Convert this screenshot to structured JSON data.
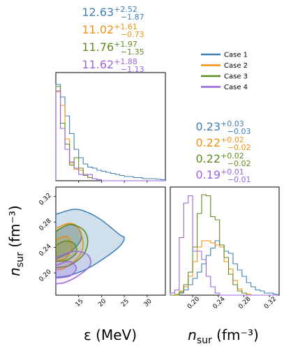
{
  "colors": {
    "case1": "#3f7fb4",
    "case2": "#f2900e",
    "case3": "#5e8a1f",
    "case4": "#9966dd"
  },
  "chart_data": [
    {
      "type": "histogram",
      "panel": "eps-marginal",
      "x_range": [
        10,
        34
      ],
      "bin_edges": [
        10,
        11,
        12,
        13,
        14,
        15,
        16,
        17,
        18,
        19,
        20,
        21,
        22,
        23,
        24,
        25,
        26,
        27,
        28,
        29,
        30,
        31,
        32,
        33,
        34
      ],
      "series": [
        {
          "name": "Case 1",
          "color": "#3f7fb4",
          "values": [
            0.92,
            0.8,
            0.62,
            0.45,
            0.3,
            0.22,
            0.16,
            0.13,
            0.12,
            0.1,
            0.09,
            0.08,
            0.07,
            0.06,
            0.05,
            0.04,
            0.04,
            0.03,
            0.03,
            0.02,
            0.02,
            0.02,
            0.015,
            0.01
          ]
        },
        {
          "name": "Case 2",
          "color": "#f2900e",
          "values": [
            0.85,
            0.72,
            0.4,
            0.17,
            0.11,
            0.1,
            0.06,
            0.03,
            0.02,
            0.01,
            0,
            0,
            0,
            0,
            0,
            0,
            0,
            0,
            0,
            0,
            0,
            0,
            0,
            0
          ]
        },
        {
          "name": "Case 3",
          "color": "#5e8a1f",
          "values": [
            0.9,
            0.55,
            0.35,
            0.15,
            0.22,
            0.12,
            0.06,
            0.03,
            0.02,
            0.01,
            0,
            0,
            0,
            0,
            0,
            0,
            0,
            0,
            0,
            0,
            0,
            0,
            0,
            0
          ]
        },
        {
          "name": "Case 4",
          "color": "#9966dd",
          "values": [
            0.86,
            0.5,
            0.3,
            0.18,
            0.12,
            0.06,
            0.05,
            0.06,
            0.02,
            0.01,
            0,
            0,
            0,
            0,
            0,
            0,
            0,
            0,
            0,
            0,
            0,
            0,
            0,
            0
          ]
        }
      ],
      "annotations": [
        {
          "median": "12.63",
          "plus": "+2.52",
          "minus": "−1.87",
          "color": "#3f7fb4"
        },
        {
          "median": "11.02",
          "plus": "+1.61",
          "minus": "−0.73",
          "color": "#f2900e"
        },
        {
          "median": "11.76",
          "plus": "+1.97",
          "minus": "−1.35",
          "color": "#5e8a1f"
        },
        {
          "median": "11.62",
          "plus": "+1.88",
          "minus": "−1.13",
          "color": "#9966dd"
        }
      ]
    },
    {
      "type": "contour",
      "panel": "joint",
      "xlim": [
        10,
        34
      ],
      "ylim": [
        0.165,
        0.335
      ],
      "x_ticks": [
        15,
        20,
        25,
        30
      ],
      "y_ticks": [
        0.2,
        0.24,
        0.28,
        0.32
      ],
      "xlabel": "ε (MeV)",
      "ylabel": "n_sur (fm⁻³)",
      "series": [
        {
          "name": "Case 1",
          "color": "#3f7fb4",
          "filled": true,
          "outer": [
            [
              10,
              0.292
            ],
            [
              14,
              0.3
            ],
            [
              17,
              0.295
            ],
            [
              20,
              0.283
            ],
            [
              24,
              0.26
            ],
            [
              25,
              0.255
            ],
            [
              24,
              0.242
            ],
            [
              21,
              0.225
            ],
            [
              17,
              0.207
            ],
            [
              13,
              0.196
            ],
            [
              10,
              0.193
            ]
          ],
          "inner": [
            [
              10,
              0.266
            ],
            [
              13,
              0.276
            ],
            [
              15,
              0.27
            ],
            [
              15.5,
              0.252
            ],
            [
              13,
              0.232
            ],
            [
              10,
              0.222
            ]
          ]
        },
        {
          "name": "Case 2",
          "color": "#f2900e",
          "filled": false,
          "outer": [
            [
              10,
              0.27
            ],
            [
              13,
              0.278
            ],
            [
              15,
              0.27
            ],
            [
              16,
              0.245
            ],
            [
              15,
              0.225
            ],
            [
              12,
              0.208
            ],
            [
              10,
              0.205
            ]
          ],
          "inner": [
            [
              10,
              0.252
            ],
            [
              12.5,
              0.257
            ],
            [
              13.5,
              0.24
            ],
            [
              12,
              0.222
            ],
            [
              10,
              0.22
            ]
          ]
        },
        {
          "name": "Case 3",
          "color": "#5e8a1f",
          "filled": false,
          "outer": [
            [
              10,
              0.265
            ],
            [
              13,
              0.276
            ],
            [
              16,
              0.268
            ],
            [
              17,
              0.25
            ],
            [
              16,
              0.228
            ],
            [
              13,
              0.212
            ],
            [
              10,
              0.208
            ]
          ],
          "inner": [
            [
              10,
              0.243
            ],
            [
              12,
              0.25
            ],
            [
              14,
              0.246
            ],
            [
              14.5,
              0.232
            ],
            [
              12.5,
              0.22
            ],
            [
              10,
              0.218
            ]
          ]
        },
        {
          "name": "Case 4",
          "color": "#9966dd",
          "filled": false,
          "outer": [
            [
              10,
              0.224
            ],
            [
              14,
              0.234
            ],
            [
              17,
              0.228
            ],
            [
              17.5,
              0.212
            ],
            [
              15,
              0.196
            ],
            [
              12,
              0.185
            ],
            [
              10,
              0.183
            ]
          ],
          "inner": [
            [
              10,
              0.212
            ],
            [
              13,
              0.218
            ],
            [
              14.5,
              0.207
            ],
            [
              13,
              0.195
            ],
            [
              10,
              0.192
            ]
          ]
        }
      ]
    },
    {
      "type": "histogram",
      "panel": "nsur-marginal",
      "x_range": [
        0.165,
        0.335
      ],
      "x_ticks": [
        0.2,
        0.24,
        0.28,
        0.32
      ],
      "xlabel": "n_sur (fm⁻³)",
      "bin_edges": [
        0.165,
        0.172,
        0.179,
        0.186,
        0.193,
        0.2,
        0.207,
        0.214,
        0.221,
        0.228,
        0.235,
        0.242,
        0.249,
        0.256,
        0.263,
        0.27,
        0.277,
        0.284,
        0.291,
        0.298,
        0.305,
        0.312,
        0.319,
        0.326,
        0.333
      ],
      "series": [
        {
          "name": "Case 1",
          "color": "#3f7fb4",
          "values": [
            0,
            0,
            0.02,
            0.05,
            0.1,
            0.16,
            0.22,
            0.3,
            0.38,
            0.45,
            0.52,
            0.48,
            0.42,
            0.4,
            0.3,
            0.24,
            0.18,
            0.12,
            0.08,
            0.05,
            0.04,
            0.02,
            0.02,
            0.01
          ]
        },
        {
          "name": "Case 2",
          "color": "#f2900e",
          "values": [
            0,
            0.01,
            0.04,
            0.08,
            0.18,
            0.32,
            0.46,
            0.52,
            0.52,
            0.5,
            0.48,
            0.46,
            0.32,
            0.25,
            0.14,
            0.06,
            0.02,
            0.01,
            0,
            0,
            0,
            0,
            0,
            0
          ]
        },
        {
          "name": "Case 3",
          "color": "#5e8a1f",
          "values": [
            0,
            0,
            0.03,
            0.1,
            0.22,
            0.46,
            0.78,
            0.96,
            0.95,
            0.75,
            0.72,
            0.48,
            0.36,
            0.2,
            0.1,
            0.04,
            0.02,
            0,
            0,
            0,
            0,
            0,
            0,
            0
          ]
        },
        {
          "name": "Case 4",
          "color": "#9966dd",
          "values": [
            0.02,
            0.05,
            0.55,
            0.88,
            0.95,
            0.42,
            0.42,
            0.34,
            0.18,
            0.08,
            0.02,
            0,
            0,
            0,
            0,
            0,
            0,
            0,
            0,
            0,
            0,
            0,
            0,
            0
          ]
        }
      ],
      "annotations": [
        {
          "median": "0.23",
          "plus": "+0.03",
          "minus": "−0.03",
          "color": "#3f7fb4"
        },
        {
          "median": "0.22",
          "plus": "+0.02",
          "minus": "−0.02",
          "color": "#f2900e"
        },
        {
          "median": "0.22",
          "plus": "+0.02",
          "minus": "−0.02",
          "color": "#5e8a1f"
        },
        {
          "median": "0.19",
          "plus": "+0.01",
          "minus": "−0.01",
          "color": "#9966dd"
        }
      ]
    }
  ],
  "legend": {
    "position": "top-right",
    "entries": [
      {
        "label": "Case 1",
        "color": "#3f7fb4"
      },
      {
        "label": "Case 2",
        "color": "#f2900e"
      },
      {
        "label": "Case 3",
        "color": "#5e8a1f"
      },
      {
        "label": "Case 4",
        "color": "#9966dd"
      }
    ]
  }
}
